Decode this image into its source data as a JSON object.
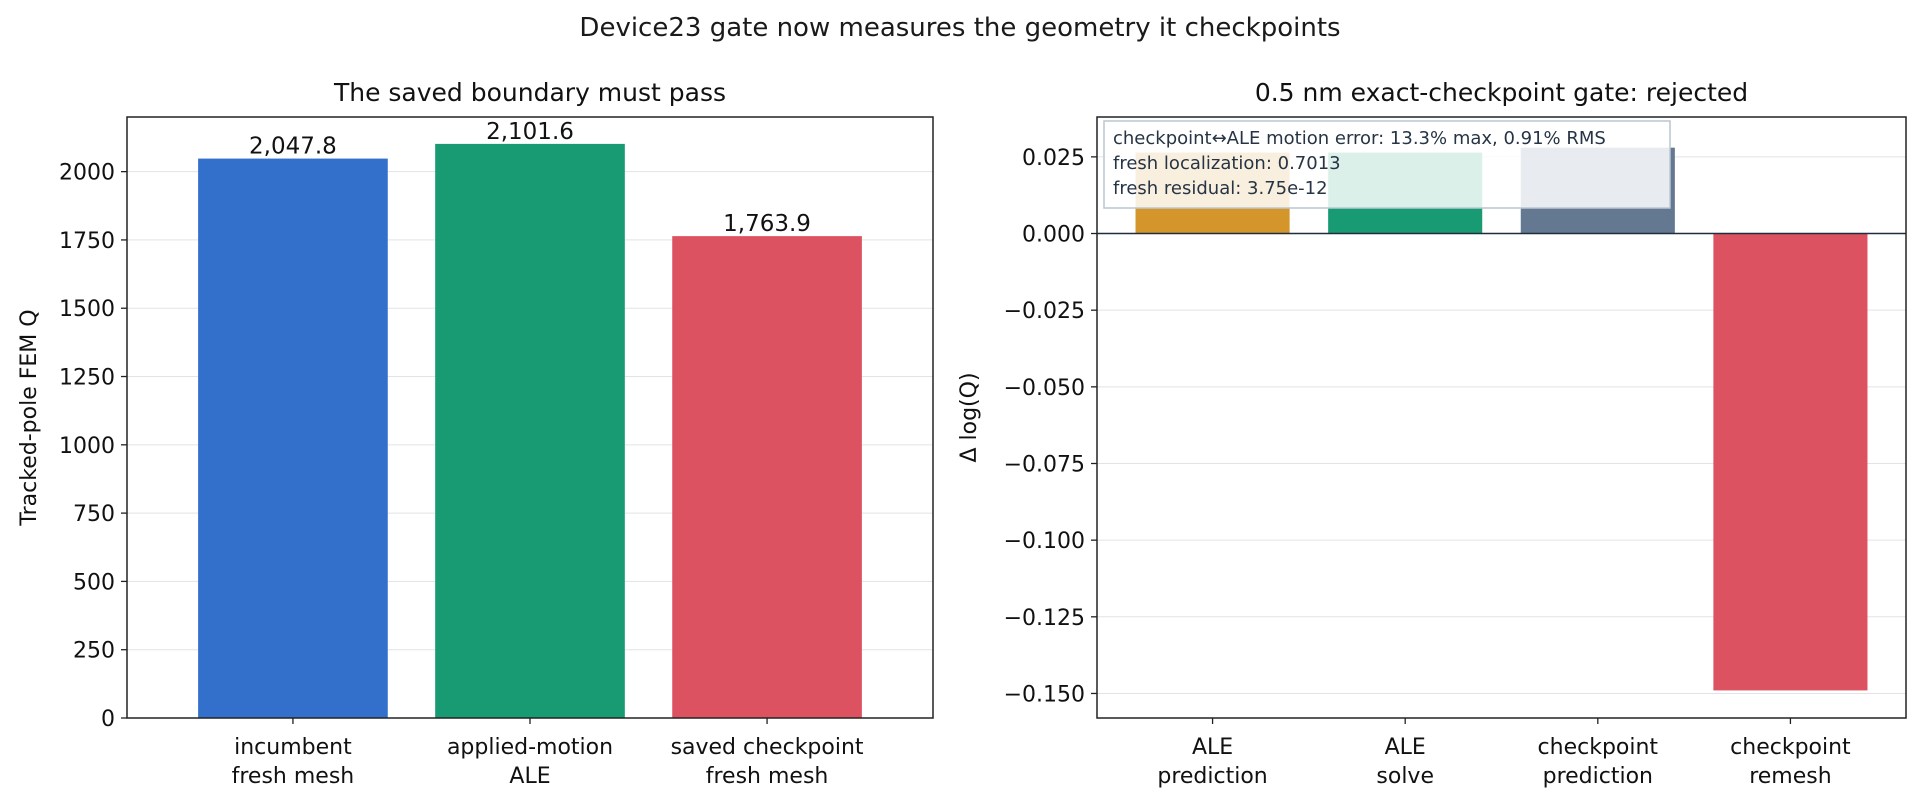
{
  "figure_title": "Device23 gate now measures the geometry it checkpoints",
  "chart_data": [
    {
      "type": "bar",
      "title": "The saved boundary must pass",
      "xlabel": "",
      "ylabel": "Tracked-pole FEM Q",
      "categories": [
        "incumbent\nfresh mesh",
        "applied-motion\nALE",
        "saved checkpoint\nfresh mesh"
      ],
      "values": [
        2047.8,
        2101.6,
        1763.9
      ],
      "data_labels": [
        "2,047.8",
        "2,101.6",
        "1,763.9"
      ],
      "colors": [
        "#3370cc",
        "#189b72",
        "#dc5261"
      ],
      "ylim": [
        0,
        2200
      ],
      "yticks": [
        0,
        250,
        500,
        750,
        1000,
        1250,
        1500,
        1750,
        2000
      ],
      "ytick_labels": [
        "0",
        "250",
        "500",
        "750",
        "1000",
        "1250",
        "1500",
        "1750",
        "2000"
      ],
      "grid": "horizontal"
    },
    {
      "type": "bar",
      "title": "0.5 nm exact-checkpoint gate: rejected",
      "xlabel": "",
      "ylabel": "Δ log(Q)",
      "categories": [
        "ALE\nprediction",
        "ALE\nsolve",
        "checkpoint\nprediction",
        "checkpoint\nremesh"
      ],
      "values": [
        0.0264,
        0.0264,
        0.028,
        -0.149
      ],
      "colors": [
        "#d4962a",
        "#189b72",
        "#657892",
        "#dc5261"
      ],
      "ylim": [
        -0.158,
        0.038
      ],
      "yticks": [
        0.025,
        0.0,
        -0.025,
        -0.05,
        -0.075,
        -0.1,
        -0.125,
        -0.15
      ],
      "ytick_labels": [
        "0.025",
        "0.000",
        "−0.025",
        "−0.050",
        "−0.075",
        "−0.100",
        "−0.125",
        "−0.150"
      ],
      "zero_line": true,
      "grid": "horizontal",
      "annotation": [
        "checkpoint↔ALE motion error: 13.3% max, 0.91% RMS",
        "fresh localization: 0.7013",
        "fresh residual: 3.75e-12"
      ]
    }
  ]
}
